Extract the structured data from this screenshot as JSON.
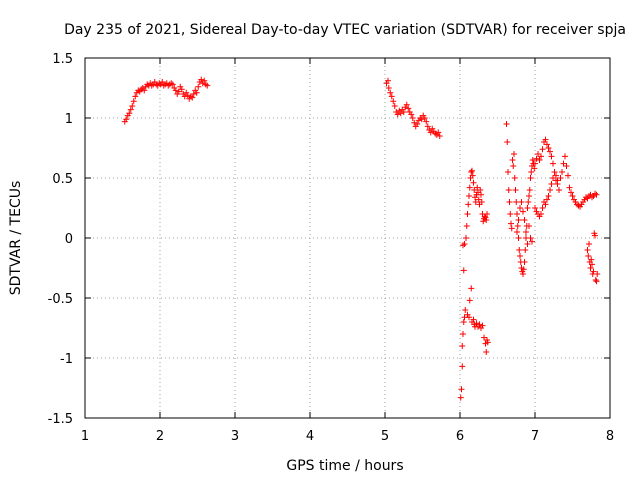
{
  "chart_data": {
    "type": "scatter",
    "title": "Day 235 of 2021, Sidereal Day-to-day VTEC variation (SDTVAR) for receiver spja",
    "xlabel": "GPS time / hours",
    "ylabel": "SDTVAR / TECUs",
    "xlim": [
      1,
      8
    ],
    "ylim": [
      -1.5,
      1.5
    ],
    "x_ticks": [
      1,
      2,
      3,
      4,
      5,
      6,
      7,
      8
    ],
    "x_tick_labels": [
      "1",
      "2",
      "3",
      "4",
      "5",
      "6",
      "7",
      "8"
    ],
    "y_ticks": [
      -1.5,
      -1,
      -0.5,
      0,
      0.5,
      1,
      1.5
    ],
    "y_tick_labels": [
      "-1.5",
      "-1",
      "-0.5",
      "0",
      "0.5",
      "1",
      "1.5"
    ],
    "grid": true,
    "marker": "+",
    "series": [
      {
        "name": "SDTVAR",
        "color": "#ff0000",
        "points": [
          [
            1.53,
            0.97
          ],
          [
            1.55,
            0.99
          ],
          [
            1.57,
            1.02
          ],
          [
            1.59,
            1.04
          ],
          [
            1.61,
            1.07
          ],
          [
            1.63,
            1.1
          ],
          [
            1.65,
            1.14
          ],
          [
            1.67,
            1.18
          ],
          [
            1.69,
            1.21
          ],
          [
            1.71,
            1.23
          ],
          [
            1.73,
            1.22
          ],
          [
            1.75,
            1.24
          ],
          [
            1.77,
            1.25
          ],
          [
            1.79,
            1.23
          ],
          [
            1.81,
            1.26
          ],
          [
            1.83,
            1.28
          ],
          [
            1.85,
            1.27
          ],
          [
            1.87,
            1.29
          ],
          [
            1.89,
            1.27
          ],
          [
            1.91,
            1.28
          ],
          [
            1.93,
            1.3
          ],
          [
            1.95,
            1.28
          ],
          [
            1.97,
            1.27
          ],
          [
            1.99,
            1.29
          ],
          [
            2.01,
            1.28
          ],
          [
            2.03,
            1.3
          ],
          [
            2.05,
            1.27
          ],
          [
            2.07,
            1.28
          ],
          [
            2.09,
            1.29
          ],
          [
            2.11,
            1.27
          ],
          [
            2.13,
            1.28
          ],
          [
            2.15,
            1.29
          ],
          [
            2.17,
            1.28
          ],
          [
            2.19,
            1.25
          ],
          [
            2.21,
            1.23
          ],
          [
            2.23,
            1.2
          ],
          [
            2.25,
            1.22
          ],
          [
            2.27,
            1.26
          ],
          [
            2.29,
            1.24
          ],
          [
            2.31,
            1.2
          ],
          [
            2.33,
            1.18
          ],
          [
            2.35,
            1.21
          ],
          [
            2.37,
            1.19
          ],
          [
            2.39,
            1.16
          ],
          [
            2.41,
            1.18
          ],
          [
            2.43,
            1.17
          ],
          [
            2.45,
            1.2
          ],
          [
            2.47,
            1.23
          ],
          [
            2.49,
            1.21
          ],
          [
            2.51,
            1.26
          ],
          [
            2.53,
            1.3
          ],
          [
            2.55,
            1.32
          ],
          [
            2.57,
            1.29
          ],
          [
            2.59,
            1.31
          ],
          [
            2.61,
            1.28
          ],
          [
            2.63,
            1.27
          ],
          [
            5.02,
            1.29
          ],
          [
            5.04,
            1.31
          ],
          [
            5.05,
            1.25
          ],
          [
            5.07,
            1.21
          ],
          [
            5.09,
            1.18
          ],
          [
            5.11,
            1.14
          ],
          [
            5.13,
            1.1
          ],
          [
            5.15,
            1.05
          ],
          [
            5.17,
            1.03
          ],
          [
            5.19,
            1.06
          ],
          [
            5.21,
            1.04
          ],
          [
            5.23,
            1.07
          ],
          [
            5.25,
            1.05
          ],
          [
            5.27,
            1.09
          ],
          [
            5.29,
            1.11
          ],
          [
            5.31,
            1.08
          ],
          [
            5.33,
            1.05
          ],
          [
            5.35,
            1.03
          ],
          [
            5.37,
            1.0
          ],
          [
            5.39,
            0.96
          ],
          [
            5.41,
            0.93
          ],
          [
            5.43,
            0.95
          ],
          [
            5.45,
            0.98
          ],
          [
            5.47,
            1.0
          ],
          [
            5.49,
            0.99
          ],
          [
            5.51,
            1.02
          ],
          [
            5.53,
            1.0
          ],
          [
            5.55,
            0.97
          ],
          [
            5.57,
            0.93
          ],
          [
            5.59,
            0.9
          ],
          [
            5.61,
            0.88
          ],
          [
            5.63,
            0.91
          ],
          [
            5.65,
            0.89
          ],
          [
            5.67,
            0.87
          ],
          [
            5.69,
            0.86
          ],
          [
            5.71,
            0.88
          ],
          [
            5.73,
            0.85
          ],
          [
            6.01,
            -1.33
          ],
          [
            6.02,
            -1.26
          ],
          [
            6.03,
            -1.07
          ],
          [
            6.03,
            -0.9
          ],
          [
            6.04,
            -0.8
          ],
          [
            6.05,
            -0.7
          ],
          [
            6.06,
            -0.66
          ],
          [
            6.07,
            -0.6
          ],
          [
            6.04,
            -0.06
          ],
          [
            6.06,
            -0.05
          ],
          [
            6.05,
            -0.27
          ],
          [
            6.08,
            0.0
          ],
          [
            6.09,
            0.1
          ],
          [
            6.1,
            0.2
          ],
          [
            6.11,
            0.28
          ],
          [
            6.12,
            0.35
          ],
          [
            6.13,
            0.42
          ],
          [
            6.14,
            0.5
          ],
          [
            6.15,
            0.55
          ],
          [
            6.16,
            0.56
          ],
          [
            6.17,
            0.52
          ],
          [
            6.18,
            0.46
          ],
          [
            6.19,
            0.4
          ],
          [
            6.2,
            0.34
          ],
          [
            6.21,
            0.3
          ],
          [
            6.22,
            0.36
          ],
          [
            6.23,
            0.42
          ],
          [
            6.24,
            0.38
          ],
          [
            6.25,
            0.32
          ],
          [
            6.26,
            0.28
          ],
          [
            6.27,
            0.4
          ],
          [
            6.28,
            0.36
          ],
          [
            6.29,
            0.3
          ],
          [
            6.3,
            0.2
          ],
          [
            6.31,
            0.14
          ],
          [
            6.32,
            0.16
          ],
          [
            6.33,
            0.18
          ],
          [
            6.34,
            0.17
          ],
          [
            6.35,
            0.15
          ],
          [
            6.36,
            0.2
          ],
          [
            6.1,
            -0.64
          ],
          [
            6.12,
            -0.66
          ],
          [
            6.13,
            -0.52
          ],
          [
            6.15,
            -0.42
          ],
          [
            6.16,
            -0.7
          ],
          [
            6.18,
            -0.68
          ],
          [
            6.19,
            -0.72
          ],
          [
            6.2,
            -0.74
          ],
          [
            6.22,
            -0.71
          ],
          [
            6.24,
            -0.74
          ],
          [
            6.26,
            -0.72
          ],
          [
            6.28,
            -0.75
          ],
          [
            6.3,
            -0.73
          ],
          [
            6.32,
            -0.83
          ],
          [
            6.34,
            -0.88
          ],
          [
            6.35,
            -0.95
          ],
          [
            6.36,
            -0.85
          ],
          [
            6.37,
            -0.87
          ],
          [
            6.62,
            0.95
          ],
          [
            6.63,
            0.8
          ],
          [
            6.64,
            0.55
          ],
          [
            6.65,
            0.4
          ],
          [
            6.66,
            0.3
          ],
          [
            6.67,
            0.2
          ],
          [
            6.68,
            0.12
          ],
          [
            6.69,
            0.08
          ],
          [
            6.7,
            0.65
          ],
          [
            6.71,
            0.6
          ],
          [
            6.72,
            0.7
          ],
          [
            6.73,
            0.5
          ],
          [
            6.74,
            0.4
          ],
          [
            6.75,
            0.3
          ],
          [
            6.76,
            0.2
          ],
          [
            6.77,
            0.1
          ],
          [
            6.78,
            0.0
          ],
          [
            6.79,
            -0.1
          ],
          [
            6.8,
            -0.15
          ],
          [
            6.81,
            -0.2
          ],
          [
            6.82,
            -0.25
          ],
          [
            6.83,
            -0.28
          ],
          [
            6.84,
            -0.3
          ],
          [
            6.85,
            -0.26
          ],
          [
            6.86,
            -0.2
          ],
          [
            6.87,
            -0.1
          ],
          [
            6.88,
            0.0
          ],
          [
            6.89,
            0.1
          ],
          [
            6.9,
            0.25
          ],
          [
            6.91,
            0.3
          ],
          [
            6.92,
            0.35
          ],
          [
            6.93,
            0.4
          ],
          [
            6.94,
            0.5
          ],
          [
            6.95,
            0.55
          ],
          [
            6.96,
            0.6
          ],
          [
            6.97,
            0.65
          ],
          [
            6.98,
            0.62
          ],
          [
            6.99,
            0.58
          ],
          [
            6.76,
            0.05
          ],
          [
            6.78,
            0.15
          ],
          [
            6.8,
            0.25
          ],
          [
            6.82,
            0.3
          ],
          [
            6.84,
            0.22
          ],
          [
            6.86,
            0.15
          ],
          [
            6.88,
            0.05
          ],
          [
            6.9,
            -0.05
          ],
          [
            6.92,
            0.1
          ],
          [
            6.94,
            0.0
          ],
          [
            6.96,
            -0.03
          ],
          [
            7.0,
            0.62
          ],
          [
            7.02,
            0.66
          ],
          [
            7.04,
            0.7
          ],
          [
            7.06,
            0.65
          ],
          [
            7.08,
            0.68
          ],
          [
            7.1,
            0.74
          ],
          [
            7.12,
            0.8
          ],
          [
            7.14,
            0.82
          ],
          [
            7.16,
            0.78
          ],
          [
            7.18,
            0.75
          ],
          [
            7.2,
            0.72
          ],
          [
            7.22,
            0.68
          ],
          [
            7.24,
            0.62
          ],
          [
            7.26,
            0.55
          ],
          [
            7.28,
            0.48
          ],
          [
            7.3,
            0.45
          ],
          [
            7.32,
            0.4
          ],
          [
            7.34,
            0.5
          ],
          [
            7.36,
            0.55
          ],
          [
            7.38,
            0.62
          ],
          [
            7.4,
            0.68
          ],
          [
            7.42,
            0.6
          ],
          [
            7.44,
            0.52
          ],
          [
            7.46,
            0.42
          ],
          [
            7.48,
            0.38
          ],
          [
            7.5,
            0.35
          ],
          [
            7.52,
            0.32
          ],
          [
            7.54,
            0.3
          ],
          [
            7.56,
            0.28
          ],
          [
            7.58,
            0.27
          ],
          [
            7.6,
            0.26
          ],
          [
            7.62,
            0.28
          ],
          [
            7.64,
            0.3
          ],
          [
            7.66,
            0.32
          ],
          [
            7.68,
            0.34
          ],
          [
            7.7,
            0.33
          ],
          [
            7.72,
            0.35
          ],
          [
            7.74,
            0.36
          ],
          [
            7.76,
            0.34
          ],
          [
            7.78,
            0.35
          ],
          [
            7.8,
            0.37
          ],
          [
            7.82,
            0.36
          ],
          [
            7.0,
            0.25
          ],
          [
            7.02,
            0.22
          ],
          [
            7.04,
            0.2
          ],
          [
            7.06,
            0.18
          ],
          [
            7.08,
            0.2
          ],
          [
            7.1,
            0.25
          ],
          [
            7.12,
            0.3
          ],
          [
            7.14,
            0.28
          ],
          [
            7.16,
            0.32
          ],
          [
            7.18,
            0.35
          ],
          [
            7.2,
            0.4
          ],
          [
            7.22,
            0.45
          ],
          [
            7.24,
            0.5
          ],
          [
            7.26,
            0.55
          ],
          [
            7.28,
            0.52
          ],
          [
            7.3,
            0.48
          ],
          [
            7.7,
            -0.1
          ],
          [
            7.71,
            -0.15
          ],
          [
            7.72,
            -0.05
          ],
          [
            7.73,
            -0.2
          ],
          [
            7.74,
            -0.25
          ],
          [
            7.75,
            -0.18
          ],
          [
            7.76,
            -0.22
          ],
          [
            7.77,
            -0.3
          ],
          [
            7.78,
            -0.28
          ],
          [
            7.79,
            0.04
          ],
          [
            7.8,
            0.02
          ],
          [
            7.81,
            -0.35
          ],
          [
            7.82,
            -0.36
          ],
          [
            7.83,
            -0.3
          ]
        ]
      }
    ]
  }
}
